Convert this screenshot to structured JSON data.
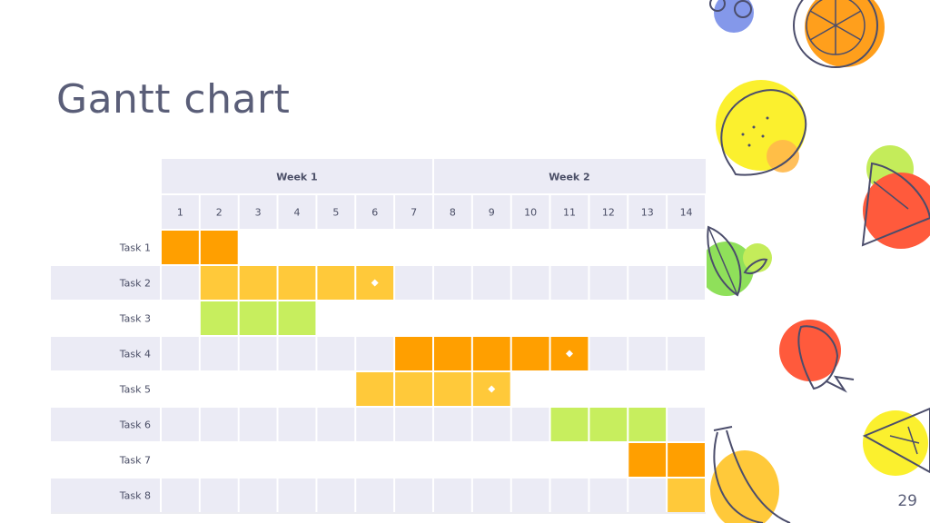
{
  "slide": {
    "title": "Gantt chart",
    "page_number": "29"
  },
  "colors": {
    "orange": "#ff9f00",
    "yellow": "#ffc93a",
    "green": "#c7ee5e",
    "header_bg": "#ebebf5",
    "stripe_bg": "#ebebf5",
    "marker": "#ffffff",
    "text": "#5a5e78"
  },
  "decorations": [
    "blueberry-icon",
    "orange-slice-icon",
    "lemon-icon",
    "watermelon-icon",
    "leaf-icon",
    "strawberry-icon",
    "lime-slice-icon",
    "banana-icon"
  ],
  "chart_data": {
    "type": "gantt",
    "title": "Gantt chart",
    "weeks": [
      {
        "label": "Week 1",
        "days": [
          1,
          7
        ]
      },
      {
        "label": "Week 2",
        "days": [
          8,
          14
        ]
      }
    ],
    "days": [
      "1",
      "2",
      "3",
      "4",
      "5",
      "6",
      "7",
      "8",
      "9",
      "10",
      "11",
      "12",
      "13",
      "14"
    ],
    "tasks": [
      {
        "label": "Task 1",
        "start": 1,
        "end": 2,
        "color": "orange"
      },
      {
        "label": "Task 2",
        "start": 2,
        "end": 6,
        "color": "yellow",
        "milestone": 6
      },
      {
        "label": "Task 3",
        "start": 2,
        "end": 4,
        "color": "green"
      },
      {
        "label": "Task 4",
        "start": 7,
        "end": 11,
        "color": "orange",
        "milestone": 11
      },
      {
        "label": "Task 5",
        "start": 6,
        "end": 9,
        "color": "yellow",
        "milestone": 9
      },
      {
        "label": "Task 6",
        "start": 11,
        "end": 13,
        "color": "green"
      },
      {
        "label": "Task 7",
        "start": 13,
        "end": 14,
        "color": "orange"
      },
      {
        "label": "Task 8",
        "start": 14,
        "end": 14,
        "color": "yellow"
      }
    ]
  }
}
